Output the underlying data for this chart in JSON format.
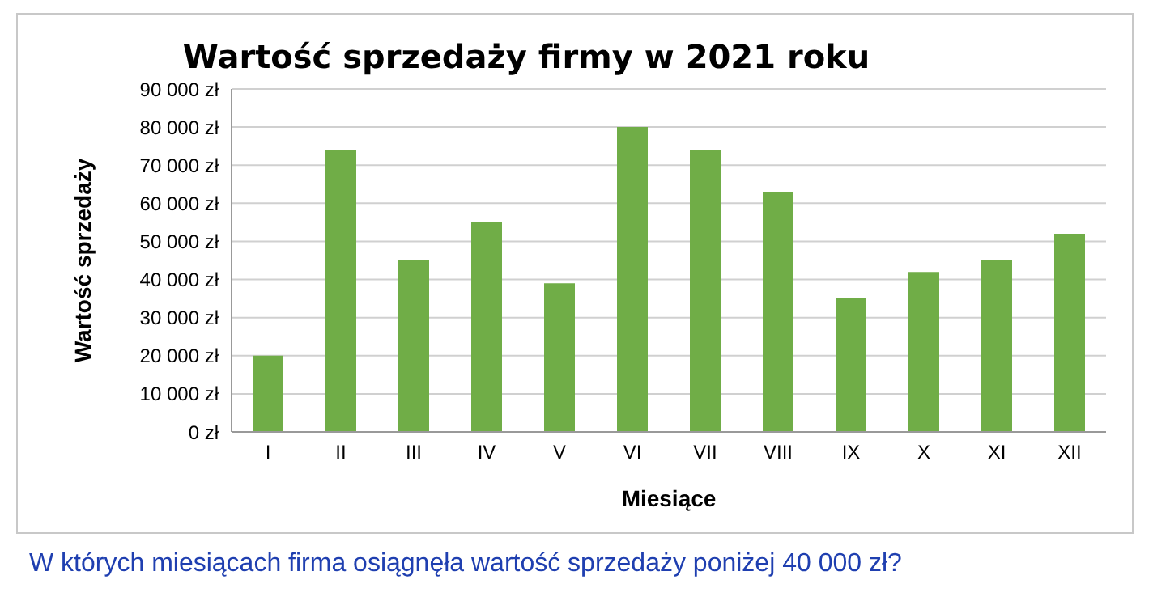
{
  "chart_data": {
    "type": "bar",
    "title": "Wartość sprzedaży firmy w 2021 roku",
    "xlabel": "Miesiące",
    "ylabel": "Wartość sprzedaży",
    "categories": [
      "I",
      "II",
      "III",
      "IV",
      "V",
      "VI",
      "VII",
      "VIII",
      "IX",
      "X",
      "XI",
      "XII"
    ],
    "values": [
      20000,
      74000,
      45000,
      55000,
      39000,
      80000,
      74000,
      63000,
      35000,
      42000,
      45000,
      52000
    ],
    "color": "#70ad47",
    "ylim": [
      0,
      90000
    ],
    "yticks": [
      {
        "value": 0,
        "label": "0 zł"
      },
      {
        "value": 10000,
        "label": "10 000 zł"
      },
      {
        "value": 20000,
        "label": "20 000 zł"
      },
      {
        "value": 30000,
        "label": "30 000 zł"
      },
      {
        "value": 40000,
        "label": "40 000 zł"
      },
      {
        "value": 50000,
        "label": "50 000 zł"
      },
      {
        "value": 60000,
        "label": "60 000 zł"
      },
      {
        "value": 70000,
        "label": "70 000 zł"
      },
      {
        "value": 80000,
        "label": "80 000 zł"
      },
      {
        "value": 90000,
        "label": "90 000 zł"
      }
    ],
    "grid": "y",
    "legend": false,
    "annotations": [
      "W których miesiącach firma osiągnęła wartość sprzedaży poniżej 40 000 zł?"
    ]
  }
}
